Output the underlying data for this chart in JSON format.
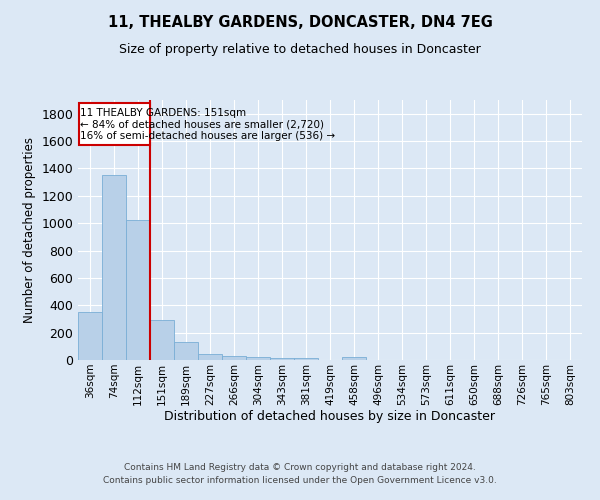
{
  "title": "11, THEALBY GARDENS, DONCASTER, DN4 7EG",
  "subtitle": "Size of property relative to detached houses in Doncaster",
  "xlabel": "Distribution of detached houses by size in Doncaster",
  "ylabel": "Number of detached properties",
  "footer_line1": "Contains HM Land Registry data © Crown copyright and database right 2024.",
  "footer_line2": "Contains public sector information licensed under the Open Government Licence v3.0.",
  "categories": [
    "36sqm",
    "74sqm",
    "112sqm",
    "151sqm",
    "189sqm",
    "227sqm",
    "266sqm",
    "304sqm",
    "343sqm",
    "381sqm",
    "419sqm",
    "458sqm",
    "496sqm",
    "534sqm",
    "573sqm",
    "611sqm",
    "650sqm",
    "688sqm",
    "726sqm",
    "765sqm",
    "803sqm"
  ],
  "values": [
    350,
    1355,
    1020,
    290,
    130,
    42,
    32,
    20,
    15,
    15,
    0,
    22,
    0,
    0,
    0,
    0,
    0,
    0,
    0,
    0,
    0
  ],
  "bar_color": "#b8d0e8",
  "bar_edgecolor": "#7aaed6",
  "background_color": "#dce8f5",
  "grid_color": "#ffffff",
  "vline_x_index": 3,
  "vline_color": "#cc0000",
  "annotation_line1": "11 THEALBY GARDENS: 151sqm",
  "annotation_line2": "← 84% of detached houses are smaller (2,720)",
  "annotation_line3": "16% of semi-detached houses are larger (536) →",
  "annotation_box_color": "#ffffff",
  "annotation_box_edgecolor": "#cc0000",
  "ylim": [
    0,
    1900
  ],
  "yticks": [
    0,
    200,
    400,
    600,
    800,
    1000,
    1200,
    1400,
    1600,
    1800
  ]
}
